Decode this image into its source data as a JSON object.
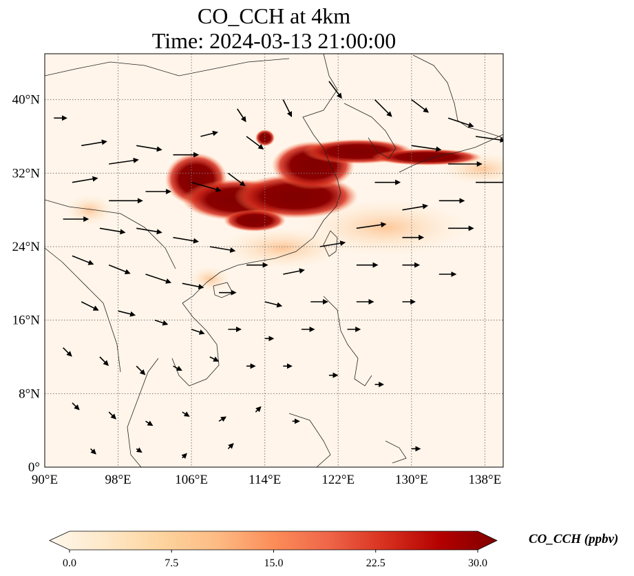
{
  "chart_data": {
    "type": "heatmap",
    "title": "CO_CCH at 4km",
    "subtitle": "Time: 2024-03-13 21:00:00",
    "x_ticks": [
      "90°E",
      "98°E",
      "106°E",
      "114°E",
      "122°E",
      "130°E",
      "138°E"
    ],
    "y_ticks": [
      "0°",
      "8°N",
      "16°N",
      "24°N",
      "32°N",
      "40°N"
    ],
    "x_tick_values": [
      90,
      98,
      106,
      114,
      122,
      130,
      138
    ],
    "y_tick_values": [
      0,
      8,
      16,
      24,
      32,
      40
    ],
    "xlim": [
      90,
      140
    ],
    "ylim": [
      0,
      45
    ],
    "grid": true,
    "colormap": "OrRd",
    "colormap_stops": [
      "#fff7ec",
      "#fee8c8",
      "#fdd49e",
      "#fdbb84",
      "#fc8d59",
      "#ef6548",
      "#d7301f",
      "#b30000",
      "#7f0000"
    ],
    "colorbar": {
      "label": "CO_CCH (ppbv)",
      "ticks": [
        "0.0",
        "7.5",
        "15.0",
        "22.5",
        "30.0"
      ],
      "tick_values": [
        0,
        7.5,
        15,
        22.5,
        30
      ],
      "range": [
        0,
        30
      ],
      "extend": "both"
    },
    "plume": {
      "description_values": "high CO concentration band over eastern China towards Japan",
      "core_region_lon": [
        103,
        127
      ],
      "core_region_lat": [
        27,
        36
      ],
      "max_value": 30
    },
    "wind_vectors": [
      {
        "lon": 91,
        "lat": 38,
        "u": 1.5,
        "v": 0
      },
      {
        "lon": 94,
        "lat": 35,
        "u": 3,
        "v": 0.5
      },
      {
        "lon": 97,
        "lat": 33,
        "u": 3.5,
        "v": 0.5
      },
      {
        "lon": 100,
        "lat": 35,
        "u": 3,
        "v": -0.5
      },
      {
        "lon": 104,
        "lat": 34,
        "u": 3,
        "v": 0
      },
      {
        "lon": 107,
        "lat": 36,
        "u": 2,
        "v": 0.5
      },
      {
        "lon": 93,
        "lat": 31,
        "u": 3,
        "v": 0.5
      },
      {
        "lon": 97,
        "lat": 29,
        "u": 4,
        "v": 0
      },
      {
        "lon": 101,
        "lat": 30,
        "u": 3,
        "v": 0
      },
      {
        "lon": 106,
        "lat": 31,
        "u": 3.5,
        "v": -1
      },
      {
        "lon": 110,
        "lat": 32,
        "u": 2,
        "v": -1.5
      },
      {
        "lon": 112,
        "lat": 36,
        "u": 2,
        "v": -1.5
      },
      {
        "lon": 116,
        "lat": 40,
        "u": 1,
        "v": -2
      },
      {
        "lon": 111,
        "lat": 39,
        "u": 1,
        "v": -1.5
      },
      {
        "lon": 121,
        "lat": 42,
        "u": 1.5,
        "v": -2
      },
      {
        "lon": 126,
        "lat": 40,
        "u": 2,
        "v": -2
      },
      {
        "lon": 130,
        "lat": 40,
        "u": 2,
        "v": -1.5
      },
      {
        "lon": 134,
        "lat": 38,
        "u": 3,
        "v": -1
      },
      {
        "lon": 137,
        "lat": 36,
        "u": 3.5,
        "v": -0.5
      },
      {
        "lon": 130,
        "lat": 35,
        "u": 3.5,
        "v": -0.5
      },
      {
        "lon": 134,
        "lat": 33,
        "u": 4,
        "v": 0
      },
      {
        "lon": 137,
        "lat": 31,
        "u": 4,
        "v": 0
      },
      {
        "lon": 126,
        "lat": 31,
        "u": 3,
        "v": 0
      },
      {
        "lon": 129,
        "lat": 28,
        "u": 3,
        "v": 0.5
      },
      {
        "lon": 133,
        "lat": 29,
        "u": 3,
        "v": 0
      },
      {
        "lon": 124,
        "lat": 26,
        "u": 3.5,
        "v": 0.5
      },
      {
        "lon": 129,
        "lat": 25,
        "u": 2.5,
        "v": 0
      },
      {
        "lon": 134,
        "lat": 26,
        "u": 3,
        "v": 0
      },
      {
        "lon": 120,
        "lat": 24,
        "u": 3,
        "v": 0.5
      },
      {
        "lon": 124,
        "lat": 22,
        "u": 2.5,
        "v": 0
      },
      {
        "lon": 129,
        "lat": 22,
        "u": 2,
        "v": 0
      },
      {
        "lon": 133,
        "lat": 21,
        "u": 2,
        "v": 0
      },
      {
        "lon": 116,
        "lat": 21,
        "u": 2.5,
        "v": 0.5
      },
      {
        "lon": 112,
        "lat": 22,
        "u": 2.5,
        "v": 0
      },
      {
        "lon": 108,
        "lat": 24,
        "u": 3,
        "v": -0.5
      },
      {
        "lon": 104,
        "lat": 25,
        "u": 3,
        "v": -0.5
      },
      {
        "lon": 100,
        "lat": 26,
        "u": 3,
        "v": -0.5
      },
      {
        "lon": 96,
        "lat": 26,
        "u": 3,
        "v": -0.5
      },
      {
        "lon": 92,
        "lat": 27,
        "u": 3,
        "v": 0
      },
      {
        "lon": 93,
        "lat": 23,
        "u": 2.5,
        "v": -1
      },
      {
        "lon": 97,
        "lat": 22,
        "u": 2.5,
        "v": -1
      },
      {
        "lon": 101,
        "lat": 21,
        "u": 3,
        "v": -1
      },
      {
        "lon": 105,
        "lat": 20,
        "u": 2.5,
        "v": -0.5
      },
      {
        "lon": 109,
        "lat": 19,
        "u": 2,
        "v": 0
      },
      {
        "lon": 114,
        "lat": 18,
        "u": 2,
        "v": -0.5
      },
      {
        "lon": 119,
        "lat": 18,
        "u": 2,
        "v": 0
      },
      {
        "lon": 124,
        "lat": 18,
        "u": 2,
        "v": 0
      },
      {
        "lon": 129,
        "lat": 18,
        "u": 1.5,
        "v": 0
      },
      {
        "lon": 94,
        "lat": 18,
        "u": 2,
        "v": -1
      },
      {
        "lon": 98,
        "lat": 17,
        "u": 2,
        "v": -0.5
      },
      {
        "lon": 102,
        "lat": 16,
        "u": 1.5,
        "v": -0.5
      },
      {
        "lon": 106,
        "lat": 15,
        "u": 1.5,
        "v": -0.5
      },
      {
        "lon": 110,
        "lat": 15,
        "u": 1.5,
        "v": 0
      },
      {
        "lon": 114,
        "lat": 14,
        "u": 1,
        "v": 0
      },
      {
        "lon": 118,
        "lat": 15,
        "u": 1.5,
        "v": 0
      },
      {
        "lon": 123,
        "lat": 15,
        "u": 1.5,
        "v": 0
      },
      {
        "lon": 92,
        "lat": 13,
        "u": 1,
        "v": -1
      },
      {
        "lon": 96,
        "lat": 12,
        "u": 1,
        "v": -1
      },
      {
        "lon": 100,
        "lat": 11,
        "u": 1,
        "v": -1
      },
      {
        "lon": 104,
        "lat": 11,
        "u": 1,
        "v": -0.5
      },
      {
        "lon": 108,
        "lat": 12,
        "u": 1,
        "v": -0.5
      },
      {
        "lon": 112,
        "lat": 11,
        "u": 1,
        "v": 0
      },
      {
        "lon": 116,
        "lat": 11,
        "u": 1,
        "v": 0
      },
      {
        "lon": 121,
        "lat": 10,
        "u": 1,
        "v": 0
      },
      {
        "lon": 126,
        "lat": 9,
        "u": 1,
        "v": 0
      },
      {
        "lon": 93,
        "lat": 7,
        "u": 0.8,
        "v": -0.8
      },
      {
        "lon": 97,
        "lat": 6,
        "u": 0.8,
        "v": -0.8
      },
      {
        "lon": 101,
        "lat": 5,
        "u": 0.8,
        "v": -0.5
      },
      {
        "lon": 105,
        "lat": 6,
        "u": 0.8,
        "v": -0.5
      },
      {
        "lon": 109,
        "lat": 5,
        "u": 0.8,
        "v": 0.5
      },
      {
        "lon": 113,
        "lat": 6,
        "u": 0.6,
        "v": 0.6
      },
      {
        "lon": 117,
        "lat": 5,
        "u": 0.8,
        "v": 0
      },
      {
        "lon": 95,
        "lat": 2,
        "u": 0.6,
        "v": -0.6
      },
      {
        "lon": 100,
        "lat": 2,
        "u": 0.6,
        "v": -0.4
      },
      {
        "lon": 105,
        "lat": 1,
        "u": 0.5,
        "v": 0.5
      },
      {
        "lon": 110,
        "lat": 2,
        "u": 0.6,
        "v": 0.6
      },
      {
        "lon": 130,
        "lat": 2,
        "u": 1,
        "v": 0
      }
    ]
  }
}
